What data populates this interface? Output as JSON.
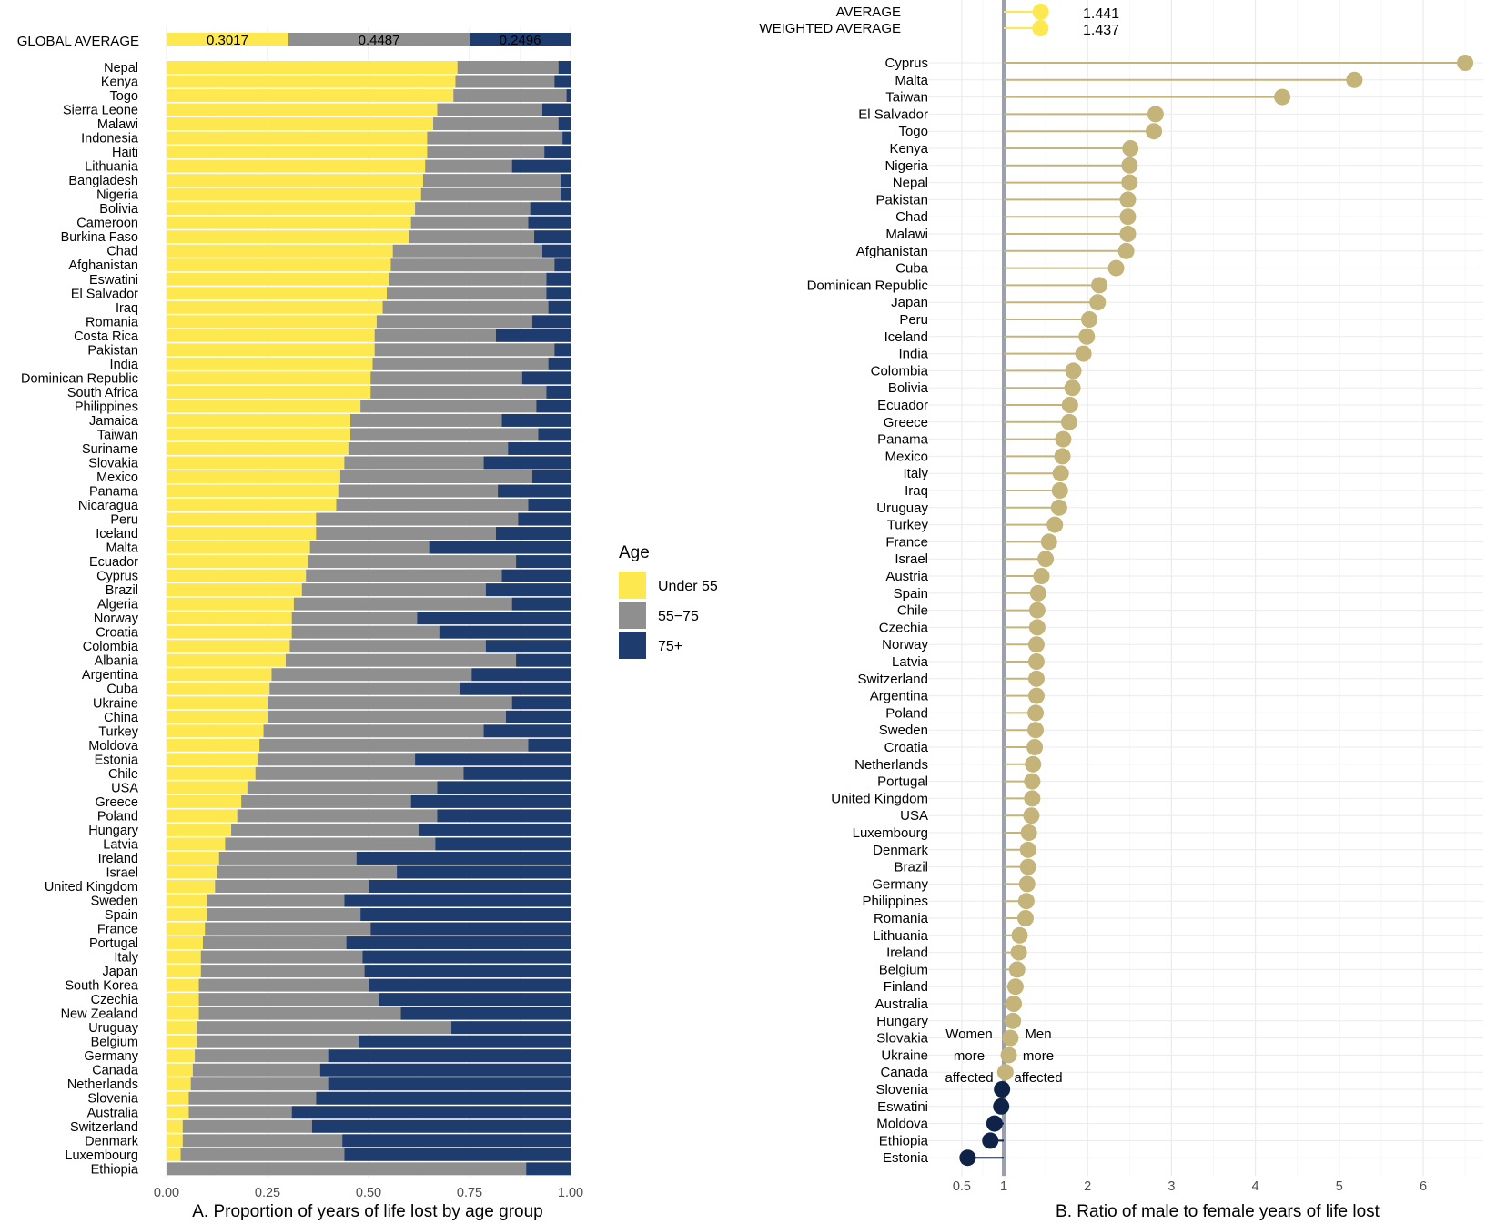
{
  "colors": {
    "under55": "#fde94f",
    "mid": "#8f8f8f",
    "old": "#1f3c6e",
    "lollipop": "#c4b47a",
    "neg": "#0f2248",
    "vline": "#9aa0b0"
  },
  "legend": {
    "title": "Age",
    "items": [
      "Under 55",
      "55−75",
      "75+"
    ]
  },
  "annotations": {
    "women": [
      "Women",
      "more",
      "affected"
    ],
    "men": [
      "Men",
      "more",
      "affected"
    ]
  },
  "chart_data": [
    {
      "type": "bar",
      "orientation": "horizontal",
      "stacked": true,
      "xlabel": "A.  Proportion of years of life lost by age group",
      "xlim": [
        0,
        1
      ],
      "xticks": [
        "0.00",
        "0.25",
        "0.50",
        "0.75",
        "1.00"
      ],
      "global_average": {
        "label": "GLOBAL AVERAGE",
        "values": [
          0.3017,
          0.4487,
          0.2496
        ],
        "labels": [
          "0.3017",
          "0.4487",
          "0.2496"
        ]
      },
      "series_names": [
        "Under 55",
        "55−75",
        "75+"
      ],
      "rows": [
        [
          "Nepal",
          0.72,
          0.25
        ],
        [
          "Kenya",
          0.715,
          0.245
        ],
        [
          "Togo",
          0.71,
          0.28
        ],
        [
          "Sierra Leone",
          0.67,
          0.26
        ],
        [
          "Malawi",
          0.66,
          0.31
        ],
        [
          "Indonesia",
          0.645,
          0.335
        ],
        [
          "Haiti",
          0.645,
          0.29
        ],
        [
          "Lithuania",
          0.64,
          0.215
        ],
        [
          "Bangladesh",
          0.635,
          0.34
        ],
        [
          "Nigeria",
          0.63,
          0.345
        ],
        [
          "Bolivia",
          0.615,
          0.285
        ],
        [
          "Cameroon",
          0.605,
          0.29
        ],
        [
          "Burkina Faso",
          0.6,
          0.31
        ],
        [
          "Chad",
          0.56,
          0.37
        ],
        [
          "Afghanistan",
          0.555,
          0.405
        ],
        [
          "Eswatini",
          0.55,
          0.39
        ],
        [
          "El Salvador",
          0.545,
          0.395
        ],
        [
          "Iraq",
          0.535,
          0.41
        ],
        [
          "Romania",
          0.52,
          0.385
        ],
        [
          "Costa Rica",
          0.515,
          0.3
        ],
        [
          "Pakistan",
          0.515,
          0.445
        ],
        [
          "India",
          0.51,
          0.435
        ],
        [
          "Dominican Republic",
          0.505,
          0.375
        ],
        [
          "South Africa",
          0.505,
          0.435
        ],
        [
          "Philippines",
          0.48,
          0.435
        ],
        [
          "Jamaica",
          0.455,
          0.375
        ],
        [
          "Taiwan",
          0.455,
          0.465
        ],
        [
          "Suriname",
          0.45,
          0.395
        ],
        [
          "Slovakia",
          0.44,
          0.345
        ],
        [
          "Mexico",
          0.43,
          0.475
        ],
        [
          "Panama",
          0.425,
          0.395
        ],
        [
          "Nicaragua",
          0.42,
          0.475
        ],
        [
          "Peru",
          0.37,
          0.5
        ],
        [
          "Iceland",
          0.37,
          0.445
        ],
        [
          "Malta",
          0.355,
          0.295
        ],
        [
          "Ecuador",
          0.35,
          0.515
        ],
        [
          "Cyprus",
          0.345,
          0.485
        ],
        [
          "Brazil",
          0.335,
          0.455
        ],
        [
          "Algeria",
          0.315,
          0.54
        ],
        [
          "Norway",
          0.31,
          0.31
        ],
        [
          "Croatia",
          0.31,
          0.365
        ],
        [
          "Colombia",
          0.305,
          0.485
        ],
        [
          "Albania",
          0.295,
          0.57
        ],
        [
          "Argentina",
          0.26,
          0.495
        ],
        [
          "Cuba",
          0.255,
          0.47
        ],
        [
          "Ukraine",
          0.25,
          0.605
        ],
        [
          "China",
          0.25,
          0.59
        ],
        [
          "Turkey",
          0.24,
          0.545
        ],
        [
          "Moldova",
          0.23,
          0.665
        ],
        [
          "Estonia",
          0.225,
          0.39
        ],
        [
          "Chile",
          0.22,
          0.515
        ],
        [
          "USA",
          0.2,
          0.47
        ],
        [
          "Greece",
          0.185,
          0.42
        ],
        [
          "Poland",
          0.175,
          0.495
        ],
        [
          "Hungary",
          0.16,
          0.465
        ],
        [
          "Latvia",
          0.145,
          0.52
        ],
        [
          "Ireland",
          0.13,
          0.34
        ],
        [
          "Israel",
          0.125,
          0.445
        ],
        [
          "United Kingdom",
          0.12,
          0.38
        ],
        [
          "Sweden",
          0.1,
          0.34
        ],
        [
          "Spain",
          0.1,
          0.38
        ],
        [
          "France",
          0.095,
          0.41
        ],
        [
          "Portugal",
          0.09,
          0.355
        ],
        [
          "Italy",
          0.085,
          0.4
        ],
        [
          "Japan",
          0.085,
          0.405
        ],
        [
          "South Korea",
          0.08,
          0.42
        ],
        [
          "Czechia",
          0.08,
          0.445
        ],
        [
          "New Zealand",
          0.08,
          0.5
        ],
        [
          "Uruguay",
          0.075,
          0.63
        ],
        [
          "Belgium",
          0.075,
          0.4
        ],
        [
          "Germany",
          0.07,
          0.33
        ],
        [
          "Canada",
          0.065,
          0.315
        ],
        [
          "Netherlands",
          0.06,
          0.34
        ],
        [
          "Slovenia",
          0.055,
          0.315
        ],
        [
          "Australia",
          0.055,
          0.255
        ],
        [
          "Switzerland",
          0.04,
          0.32
        ],
        [
          "Denmark",
          0.04,
          0.395
        ],
        [
          "Luxembourg",
          0.035,
          0.405
        ],
        [
          "Ethiopia",
          0.0,
          0.89
        ]
      ]
    },
    {
      "type": "scatter",
      "style": "lollipop",
      "xlabel": "B.  Ratio of male to female years of life lost",
      "xlim": [
        0.2,
        6.6
      ],
      "reference_x": 1,
      "xticks": [
        "0.5",
        "1",
        "2",
        "3",
        "4",
        "5",
        "6"
      ],
      "averages": [
        {
          "label": "AVERAGE",
          "value": 1.441,
          "text": "1.441"
        },
        {
          "label": "WEIGHTED AVERAGE",
          "value": 1.437,
          "text": "1.437"
        }
      ],
      "points": [
        [
          "Cyprus",
          6.5
        ],
        [
          "Malta",
          5.18
        ],
        [
          "Taiwan",
          4.32
        ],
        [
          "El Salvador",
          2.81
        ],
        [
          "Togo",
          2.79
        ],
        [
          "Kenya",
          2.51
        ],
        [
          "Nigeria",
          2.5
        ],
        [
          "Nepal",
          2.5
        ],
        [
          "Pakistan",
          2.48
        ],
        [
          "Chad",
          2.48
        ],
        [
          "Malawi",
          2.48
        ],
        [
          "Afghanistan",
          2.46
        ],
        [
          "Cuba",
          2.34
        ],
        [
          "Dominican Republic",
          2.14
        ],
        [
          "Japan",
          2.12
        ],
        [
          "Peru",
          2.02
        ],
        [
          "Iceland",
          1.99
        ],
        [
          "India",
          1.95
        ],
        [
          "Colombia",
          1.83
        ],
        [
          "Bolivia",
          1.82
        ],
        [
          "Ecuador",
          1.79
        ],
        [
          "Greece",
          1.78
        ],
        [
          "Panama",
          1.71
        ],
        [
          "Mexico",
          1.7
        ],
        [
          "Italy",
          1.68
        ],
        [
          "Iraq",
          1.67
        ],
        [
          "Uruguay",
          1.66
        ],
        [
          "Turkey",
          1.61
        ],
        [
          "France",
          1.54
        ],
        [
          "Israel",
          1.5
        ],
        [
          "Austria",
          1.45
        ],
        [
          "Spain",
          1.41
        ],
        [
          "Chile",
          1.4
        ],
        [
          "Czechia",
          1.4
        ],
        [
          "Norway",
          1.39
        ],
        [
          "Latvia",
          1.39
        ],
        [
          "Switzerland",
          1.39
        ],
        [
          "Argentina",
          1.39
        ],
        [
          "Poland",
          1.38
        ],
        [
          "Sweden",
          1.38
        ],
        [
          "Croatia",
          1.37
        ],
        [
          "Netherlands",
          1.35
        ],
        [
          "Portugal",
          1.34
        ],
        [
          "United Kingdom",
          1.34
        ],
        [
          "USA",
          1.33
        ],
        [
          "Luxembourg",
          1.3
        ],
        [
          "Denmark",
          1.29
        ],
        [
          "Brazil",
          1.29
        ],
        [
          "Germany",
          1.28
        ],
        [
          "Philippines",
          1.27
        ],
        [
          "Romania",
          1.26
        ],
        [
          "Lithuania",
          1.19
        ],
        [
          "Ireland",
          1.18
        ],
        [
          "Belgium",
          1.16
        ],
        [
          "Finland",
          1.14
        ],
        [
          "Australia",
          1.12
        ],
        [
          "Hungary",
          1.11
        ],
        [
          "Slovakia",
          1.08
        ],
        [
          "Ukraine",
          1.06
        ],
        [
          "Canada",
          1.02
        ],
        [
          "Slovenia",
          0.98
        ],
        [
          "Eswatini",
          0.97
        ],
        [
          "Moldova",
          0.89
        ],
        [
          "Ethiopia",
          0.84
        ],
        [
          "Estonia",
          0.57
        ]
      ]
    }
  ]
}
